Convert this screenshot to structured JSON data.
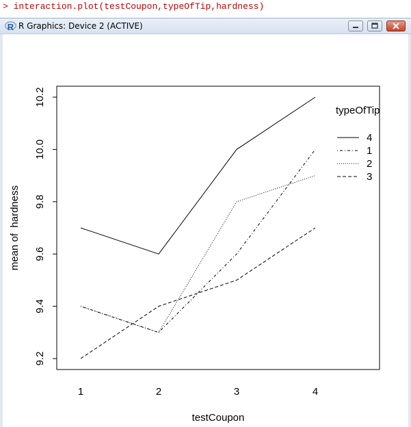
{
  "console": {
    "prompt": ">",
    "command": "interaction.plot(testCoupon,typeOfTip,hardness)"
  },
  "window": {
    "title": "R Graphics: Device 2 (ACTIVE)",
    "logo_letter": "R"
  },
  "colors": {
    "console_text": "#c00000",
    "plot_line": "#000000",
    "logo": "#1f5fb4"
  },
  "chart_data": {
    "type": "line",
    "xlabel": "testCoupon",
    "ylabel": "mean of  hardness",
    "categories": [
      "1",
      "2",
      "3",
      "4"
    ],
    "ylim": [
      9.2,
      10.2
    ],
    "yticks": [
      "9.2",
      "9.4",
      "9.6",
      "9.8",
      "10.0",
      "10.2"
    ],
    "legend_title": "typeOfTip",
    "legend_placement": "top-right",
    "grid": false,
    "series": [
      {
        "name": "4",
        "linestyle": "solid",
        "values": [
          9.7,
          9.6,
          10.0,
          10.2
        ]
      },
      {
        "name": "1",
        "linestyle": "dotdash",
        "values": [
          9.4,
          9.3,
          9.6,
          10.0
        ]
      },
      {
        "name": "2",
        "linestyle": "dotted",
        "values": [
          9.4,
          9.3,
          9.8,
          9.9
        ]
      },
      {
        "name": "3",
        "linestyle": "dashed",
        "values": [
          9.2,
          9.4,
          9.5,
          9.7
        ]
      }
    ]
  }
}
